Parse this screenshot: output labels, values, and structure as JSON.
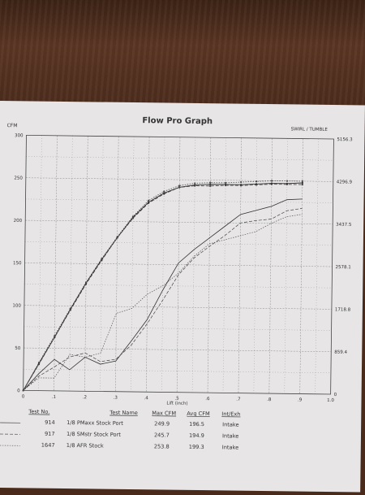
{
  "chart_data": {
    "type": "line",
    "title": "Flow Pro Graph",
    "ylabel_left": "CFM",
    "ylabel_right": "SWIRL / TUMBLE",
    "xlabel": "Lift (inch)",
    "xlim": [
      0,
      1.0
    ],
    "ylim": [
      0,
      300
    ],
    "grid": true,
    "x_ticks": [
      "0",
      ".1",
      ".2",
      ".3",
      ".4",
      ".5",
      ".6",
      ".7",
      ".8",
      ".9",
      "1.0"
    ],
    "y_ticks_left": [
      "0",
      "50",
      "100",
      "150",
      "200",
      "250",
      "300"
    ],
    "y_ticks_right": [
      "0",
      "859.4",
      "1718.8",
      "2578.1",
      "3437.5",
      "4296.9",
      "5156.3"
    ],
    "x": [
      0,
      0.05,
      0.1,
      0.15,
      0.2,
      0.25,
      0.3,
      0.35,
      0.4,
      0.45,
      0.5,
      0.55,
      0.6,
      0.65,
      0.7,
      0.75,
      0.8,
      0.85,
      0.9
    ],
    "series": [
      {
        "values": [
          0,
          32,
          63,
          96,
          127,
          155,
          181,
          205,
          223,
          234,
          241,
          244,
          245,
          245,
          245,
          246,
          247,
          247,
          248
        ]
      },
      {
        "values": [
          0,
          31,
          63,
          95,
          126,
          154,
          181,
          204,
          222,
          233,
          241,
          243,
          243,
          244,
          244,
          245,
          246,
          246,
          246
        ]
      },
      {
        "values": [
          0,
          33,
          65,
          97,
          128,
          156,
          182,
          206,
          225,
          236,
          243,
          246,
          247,
          247,
          248,
          249,
          250,
          250,
          250
        ]
      },
      {
        "values": [
          0,
          20,
          37,
          25,
          40,
          32,
          36,
          60,
          85,
          120,
          152,
          168,
          182,
          196,
          210,
          215,
          220,
          228,
          229
        ]
      },
      {
        "values": [
          0,
          17,
          28,
          40,
          45,
          35,
          38,
          55,
          80,
          108,
          138,
          158,
          172,
          185,
          200,
          203,
          205,
          215,
          218
        ]
      },
      {
        "values": [
          0,
          15,
          15,
          43,
          40,
          45,
          92,
          98,
          115,
          125,
          140,
          160,
          175,
          180,
          185,
          190,
          200,
          208,
          211
        ]
      }
    ]
  },
  "table": {
    "headers": [
      "Test No.",
      "Test Name",
      "Max CFM",
      "Avg CFM",
      "Int/Exh"
    ],
    "rows": [
      {
        "test_no": "914",
        "test_name": "1/8 PMaxx Stock Port",
        "max_cfm": "249.9",
        "avg_cfm": "196.5",
        "int_exh": "Intake"
      },
      {
        "test_no": "917",
        "test_name": "1/8 SMstr Stock Port",
        "max_cfm": "245.7",
        "avg_cfm": "194.9",
        "int_exh": "Intake"
      },
      {
        "test_no": "1647",
        "test_name": "1/8 AFR Stock",
        "max_cfm": "253.8",
        "avg_cfm": "199.3",
        "int_exh": "Intake"
      }
    ]
  },
  "colors": {
    "paper": "#e7e5e6",
    "line": "#333333",
    "grid": "#8a8a8a"
  }
}
